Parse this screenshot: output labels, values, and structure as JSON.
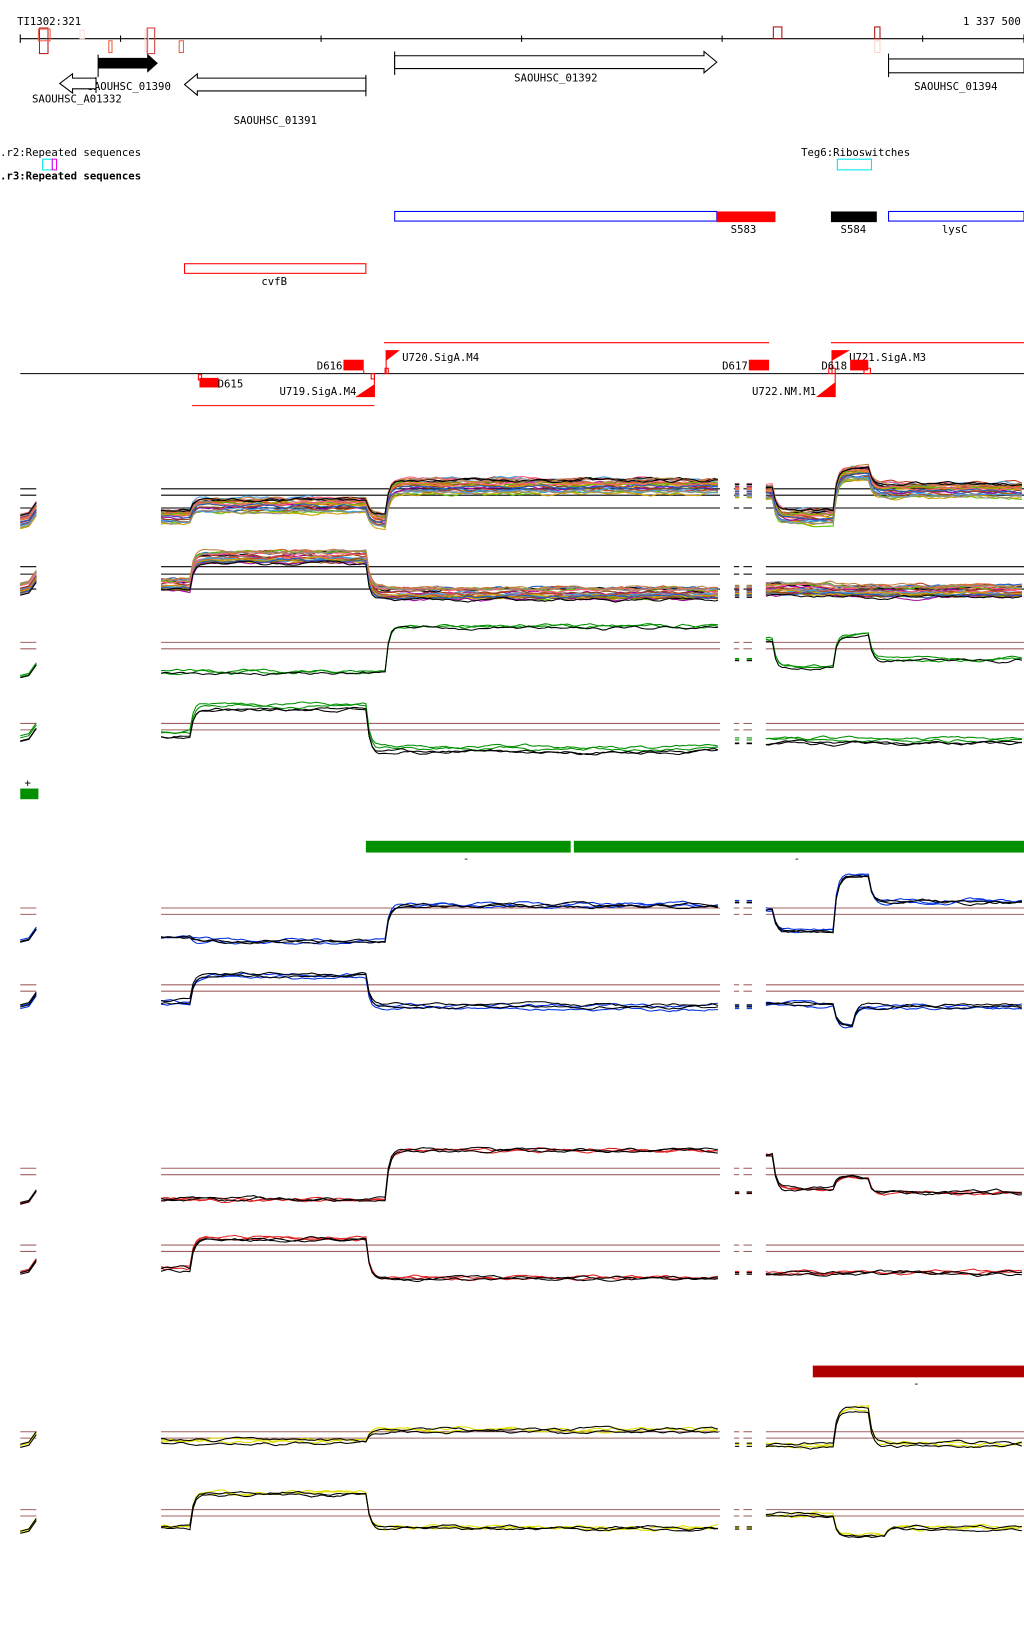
{
  "header": {
    "start_coord": "TI1302:321",
    "end_coord": "1 337 500"
  },
  "genes": [
    {
      "name": "SAOUHSC_01390",
      "strand": "+",
      "filled": true
    },
    {
      "name": "SAOUHSC_A01332",
      "strand": "-",
      "filled": false
    },
    {
      "name": "SAOUHSC_01391",
      "strand": "-",
      "filled": false
    },
    {
      "name": "SAOUHSC_01392",
      "strand": "+",
      "filled": false
    },
    {
      "name": "SAOUHSC_01394",
      "strand": "+",
      "filled": false
    }
  ],
  "features": {
    "repeat_r2": ".r2:Repeated sequences",
    "repeat_r3": ".r3:Repeated sequences",
    "riboswitch": "Teg6:Riboswitches",
    "srna": [
      {
        "name": "S583",
        "color": "#ff0000"
      },
      {
        "name": "S584",
        "color": "#000000"
      },
      {
        "name": "lysC",
        "color": "#0000ff"
      },
      {
        "name": "cvfB",
        "color": "#ff0000"
      }
    ]
  },
  "transcripts": {
    "D615": "D615",
    "D616": "D616",
    "D617": "D617",
    "D618": "D618",
    "U719": "U719.SigA.M4",
    "U720": "U720.SigA.M4",
    "U721": "U721.SigA.M3",
    "U722": "U722.NM.M1"
  },
  "legend": {
    "plus": "+",
    "plus_color": "#009000"
  },
  "segments": {
    "dash1": "-",
    "dash2": "-",
    "dash3": "-"
  },
  "colors": {
    "green": "#009000",
    "blue": "#0030e0",
    "red": "#e02020",
    "yellow": "#e0e000",
    "ref_line": "#a06060",
    "dark_red_bar": "#b00000"
  }
}
